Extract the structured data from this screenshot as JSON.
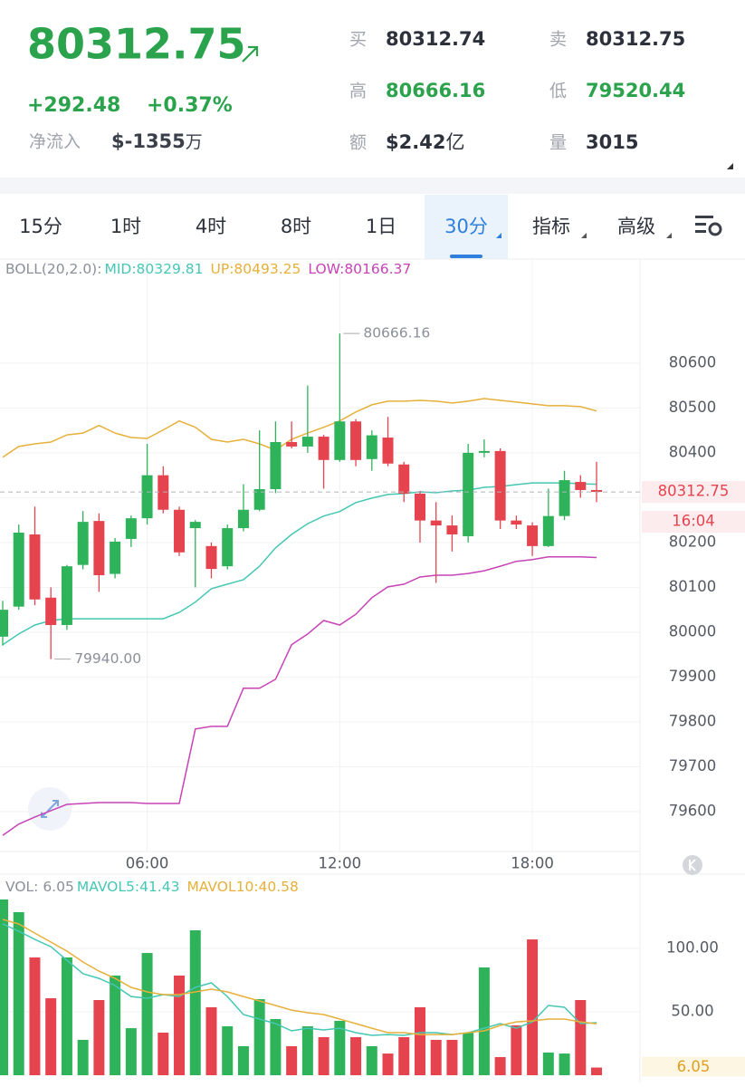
{
  "header": {
    "price": "80312.75",
    "change": "+292.48",
    "change_pct": "+0.37%",
    "net_inflow_label": "净流入",
    "net_inflow": "$-1355",
    "net_inflow_unit": "万",
    "quotes": [
      {
        "label": "买",
        "value": "80312.74"
      },
      {
        "label": "卖",
        "value": "80312.75"
      },
      {
        "label": "高",
        "value": "80666.16"
      },
      {
        "label": "低",
        "value": "79520.44"
      },
      {
        "label": "额",
        "value": "$2.42",
        "unit": "亿"
      },
      {
        "label": "量",
        "value": "3015"
      }
    ]
  },
  "tabs": {
    "items": [
      "15分",
      "1时",
      "4时",
      "8时",
      "1日",
      "30分",
      "指标",
      "高级"
    ],
    "active": 5
  },
  "chart_data": [
    {
      "type": "candlestick",
      "title": "BOLL(20,2.0):",
      "categories": [
        null,
        null,
        null,
        null,
        null,
        null,
        null,
        null,
        null,
        "06:00",
        null,
        null,
        null,
        null,
        null,
        null,
        null,
        null,
        null,
        null,
        null,
        "12:00",
        null,
        null,
        null,
        null,
        null,
        null,
        null,
        null,
        null,
        null,
        null,
        "18:00",
        null,
        null,
        null,
        null
      ],
      "open": [
        79990,
        80057,
        80218,
        80077,
        80016,
        80150,
        80248,
        80130,
        80208,
        80254,
        80350,
        80273,
        80232,
        80192,
        80147,
        80232,
        80273,
        80319,
        80424,
        80414,
        80436,
        80384,
        80470,
        80386,
        80434,
        80374,
        80309,
        80249,
        80238,
        80214,
        80400,
        80404,
        80249,
        80238,
        80192,
        80259,
        80335,
        80317
      ],
      "high": [
        80070,
        80240,
        80280,
        80100,
        80150,
        80270,
        80265,
        80210,
        80260,
        80420,
        80370,
        80280,
        80250,
        80200,
        80240,
        80330,
        80450,
        80470,
        80470,
        80550,
        80440,
        80666.16,
        80475,
        80450,
        80480,
        80380,
        80315,
        80290,
        80260,
        80420,
        80430,
        80410,
        80260,
        80245,
        80320,
        80360,
        80350,
        80380
      ],
      "low": [
        79970,
        80050,
        80060,
        79940,
        80005,
        80140,
        80090,
        80120,
        80190,
        80240,
        80265,
        80170,
        80100,
        80120,
        80140,
        80225,
        80270,
        80310,
        80410,
        80400,
        80320,
        80380,
        80370,
        80360,
        80370,
        80290,
        80200,
        80110,
        80180,
        80200,
        80390,
        80230,
        80230,
        80170,
        80190,
        80250,
        80300,
        80290
      ],
      "close": [
        80050,
        80222,
        80073,
        80016,
        80147,
        80246,
        80127,
        80202,
        80254,
        80350,
        80273,
        80178,
        80246,
        80141,
        80232,
        80273,
        80319,
        80424,
        80414,
        80436,
        80384,
        80470,
        80384,
        80439,
        80376,
        80309,
        80249,
        80238,
        80218,
        80400,
        80404,
        80249,
        80240,
        80192,
        80259,
        80339,
        80317,
        80312.75
      ],
      "up_color": "#2fb35a",
      "down_color": "#e5444f",
      "series": [
        {
          "name": "MID:80329.81",
          "color": "#45c7b4",
          "values": [
            79972,
            79996,
            80016,
            80026,
            80030,
            80030,
            80030,
            80030,
            80030,
            80030,
            80030,
            80044,
            80067,
            80097,
            80107,
            80117,
            80147,
            80188,
            80218,
            80242,
            80259,
            80269,
            80289,
            80299,
            80307,
            80309,
            80313,
            80311,
            80315,
            80317,
            80323,
            80325,
            80329,
            80333,
            80333,
            80333,
            80331,
            80329.81
          ]
        },
        {
          "name": "UP:80493.25",
          "color": "#e6b03a",
          "values": [
            80390,
            80414,
            80420,
            80424,
            80440,
            80444,
            80461,
            80444,
            80434,
            80432,
            80451,
            80471,
            80457,
            80430,
            80424,
            80430,
            80420,
            80406,
            80430,
            80444,
            80457,
            80471,
            80491,
            80507,
            80515,
            80515,
            80517,
            80515,
            80511,
            80515,
            80521,
            80517,
            80513,
            80509,
            80505,
            80505,
            80503,
            80493.25
          ]
        },
        {
          "name": "LOW:80166.37",
          "color": "#c743b6",
          "values": [
            79547,
            79572,
            79588,
            79602,
            79616,
            79618,
            79620,
            79620,
            79620,
            79618,
            79618,
            79618,
            79784,
            79790,
            79790,
            79875,
            79875,
            79895,
            79972,
            79996,
            80026,
            80016,
            80040,
            80077,
            80101,
            80107,
            80123,
            80127,
            80127,
            80131,
            80137,
            80147,
            80158,
            80162,
            80168,
            80168,
            80168,
            80166.37
          ]
        }
      ],
      "annotations": [
        80666.16,
        {
          "value": 79940,
          "label": "79940.00"
        }
      ],
      "current": 80312.75,
      "countdown": "16:04",
      "ylim": [
        79511,
        80830
      ],
      "yticks": [
        79600,
        79700,
        79800,
        79900,
        80000,
        80100,
        80200,
        80300,
        80400,
        80500,
        80600
      ],
      "grid": true
    },
    {
      "type": "bar",
      "title": "VOL: 6.05",
      "values": [
        138.6,
        128.6,
        92.9,
        60.7,
        92.9,
        27.9,
        59.3,
        78.6,
        37.1,
        96.4,
        33.6,
        78.6,
        114.3,
        53.6,
        38.6,
        22.9,
        60,
        44.3,
        22.9,
        38.6,
        30,
        42.9,
        30,
        22.9,
        17.1,
        30,
        53.6,
        27.9,
        27.9,
        33.6,
        85,
        14.3,
        39.3,
        107.1,
        17.9,
        17.1,
        59.3,
        6.05
      ],
      "series": [
        {
          "name": "MAVOL5:41.43",
          "color": "#45c7b4",
          "values": [
            119.3,
            113.6,
            107.1,
            101.4,
            90.7,
            80,
            76.4,
            70.7,
            62.1,
            60.7,
            63.6,
            62.1,
            69.3,
            72.9,
            62.1,
            47.9,
            44.3,
            40.7,
            35,
            37.1,
            35.7,
            37.1,
            33.6,
            31.4,
            32.1,
            31.4,
            33.6,
            33.6,
            32.1,
            33.6,
            37.1,
            40.7,
            37.1,
            42.1,
            55,
            53.6,
            40.7,
            41.43
          ]
        },
        {
          "name": "MAVOL10:40.58",
          "color": "#e6b03a",
          "values": [
            122.9,
            119.3,
            112.1,
            105,
            97.9,
            89.3,
            82.1,
            76.4,
            69.3,
            65.7,
            63.6,
            63.6,
            65.7,
            67.9,
            65.7,
            62.1,
            58.6,
            55,
            51.4,
            49.3,
            47.9,
            44.3,
            40.7,
            37.1,
            33.6,
            33.6,
            32.1,
            32.1,
            32.1,
            33.6,
            35,
            39.3,
            42.1,
            42.9,
            44.3,
            44.3,
            42.1,
            40.58
          ]
        }
      ],
      "current": 6.05,
      "ylim": [
        0,
        158.6
      ],
      "yticks": [
        {
          "value": 50,
          "label": "50.00"
        },
        {
          "value": 100,
          "label": "100.00"
        }
      ],
      "grid": true
    }
  ]
}
